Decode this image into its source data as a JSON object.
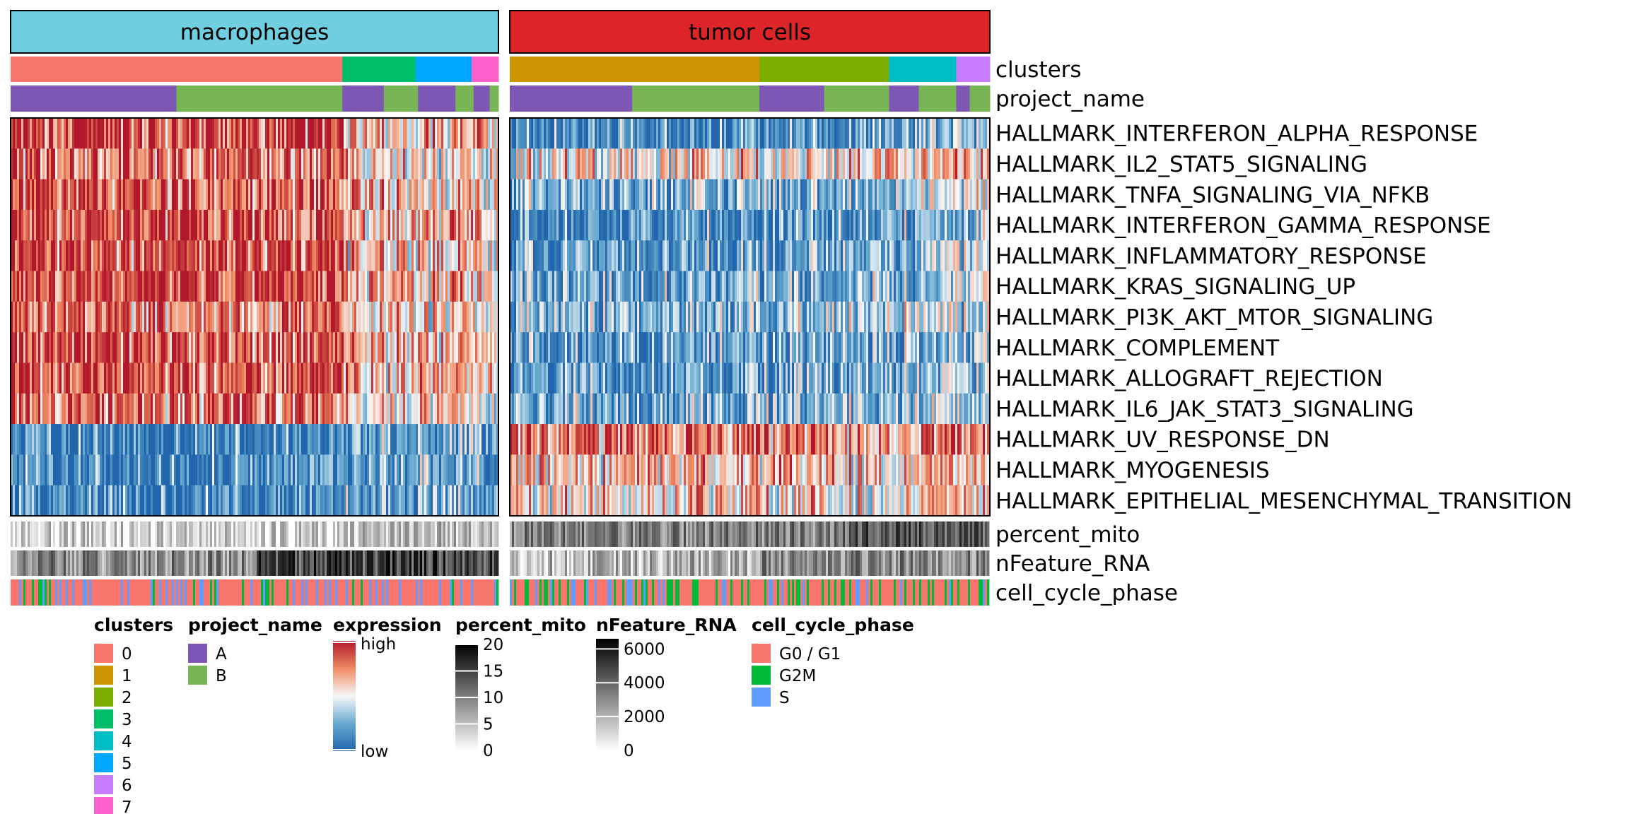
{
  "chart_data": {
    "type": "heatmap",
    "title": "",
    "groups": [
      {
        "name": "macrophages",
        "color": "#6FCFE0",
        "clusters": [
          {
            "label": "0",
            "fraction": 0.68
          },
          {
            "label": "3",
            "fraction": 0.15
          },
          {
            "label": "5",
            "fraction": 0.115
          },
          {
            "label": "7",
            "fraction": 0.055
          }
        ],
        "project_segments": [
          {
            "label": "A",
            "fraction": 0.34
          },
          {
            "label": "B",
            "fraction": 0.34
          },
          {
            "label": "A",
            "fraction": 0.085
          },
          {
            "label": "B",
            "fraction": 0.07
          },
          {
            "label": "A",
            "fraction": 0.077
          },
          {
            "label": "B",
            "fraction": 0.037
          },
          {
            "label": "A",
            "fraction": 0.033
          },
          {
            "label": "B",
            "fraction": 0.018
          }
        ],
        "profiles": [
          0.9,
          0.8,
          0.85,
          0.9,
          0.85,
          0.9,
          0.8,
          0.9,
          0.9,
          0.8,
          0.1,
          0.12,
          0.1
        ],
        "mito_level": 0.2,
        "nfeature_level": 0.55,
        "phase_mix": [
          0.72,
          0.08,
          0.2
        ]
      },
      {
        "name": "tumor cells",
        "color": "#DD2529",
        "clusters": [
          {
            "label": "1",
            "fraction": 0.52
          },
          {
            "label": "2",
            "fraction": 0.27
          },
          {
            "label": "4",
            "fraction": 0.14
          },
          {
            "label": "6",
            "fraction": 0.07
          }
        ],
        "project_segments": [
          {
            "label": "A",
            "fraction": 0.255
          },
          {
            "label": "B",
            "fraction": 0.265
          },
          {
            "label": "A",
            "fraction": 0.135
          },
          {
            "label": "B",
            "fraction": 0.135
          },
          {
            "label": "A",
            "fraction": 0.062
          },
          {
            "label": "B",
            "fraction": 0.078
          },
          {
            "label": "A",
            "fraction": 0.028
          },
          {
            "label": "B",
            "fraction": 0.042
          }
        ],
        "profiles": [
          0.15,
          0.55,
          0.3,
          0.15,
          0.2,
          0.25,
          0.3,
          0.2,
          0.2,
          0.25,
          0.8,
          0.65,
          0.6
        ],
        "mito_level": 0.55,
        "nfeature_level": 0.35,
        "phase_mix": [
          0.55,
          0.28,
          0.17
        ]
      }
    ],
    "rows": [
      "HALLMARK_INTERFERON_ALPHA_RESPONSE",
      "HALLMARK_IL2_STAT5_SIGNALING",
      "HALLMARK_TNFA_SIGNALING_VIA_NFKB",
      "HALLMARK_INTERFERON_GAMMA_RESPONSE",
      "HALLMARK_INFLAMMATORY_RESPONSE",
      "HALLMARK_KRAS_SIGNALING_UP",
      "HALLMARK_PI3K_AKT_MTOR_SIGNALING",
      "HALLMARK_COMPLEMENT",
      "HALLMARK_ALLOGRAFT_REJECTION",
      "HALLMARK_IL6_JAK_STAT3_SIGNALING",
      "HALLMARK_UV_RESPONSE_DN",
      "HALLMARK_MYOGENESIS",
      "HALLMARK_EPITHELIAL_MESENCHYMAL_TRANSITION"
    ],
    "top_annotation_labels": [
      "clusters",
      "project_name"
    ],
    "bottom_annotation_labels": [
      "percent_mito",
      "nFeature_RNA",
      "cell_cycle_phase"
    ],
    "legends": {
      "clusters": {
        "title": "clusters",
        "items": [
          {
            "label": "0",
            "color": "#F8766D"
          },
          {
            "label": "1",
            "color": "#CD9600"
          },
          {
            "label": "2",
            "color": "#7CAE00"
          },
          {
            "label": "3",
            "color": "#00BE67"
          },
          {
            "label": "4",
            "color": "#00BFC4"
          },
          {
            "label": "5",
            "color": "#00A9FF"
          },
          {
            "label": "6",
            "color": "#C77CFF"
          },
          {
            "label": "7",
            "color": "#FF61CC"
          }
        ]
      },
      "project_name": {
        "title": "project_name",
        "items": [
          {
            "label": "A",
            "color": "#7E57B5"
          },
          {
            "label": "B",
            "color": "#78B655"
          }
        ]
      },
      "expression": {
        "title": "expression",
        "high_label": "high",
        "low_label": "low",
        "colors": [
          "#B2182B",
          "#EF8A62",
          "#F7F7F7",
          "#67A9CF",
          "#2166AC"
        ]
      },
      "percent_mito": {
        "title": "percent_mito",
        "ticks": [
          "20",
          "15",
          "10",
          "5",
          "0"
        ],
        "range": [
          0,
          20
        ]
      },
      "nFeature_RNA": {
        "title": "nFeature_RNA",
        "ticks": [
          "6000",
          "4000",
          "2000",
          "0"
        ],
        "tick_values": [
          6000,
          4000,
          2000,
          0
        ],
        "range": [
          0,
          6600
        ]
      },
      "cell_cycle_phase": {
        "title": "cell_cycle_phase",
        "items": [
          {
            "label": "G0 / G1",
            "color": "#F8766D"
          },
          {
            "label": "G2M",
            "color": "#00BA38"
          },
          {
            "label": "S",
            "color": "#619CFF"
          }
        ]
      }
    }
  }
}
